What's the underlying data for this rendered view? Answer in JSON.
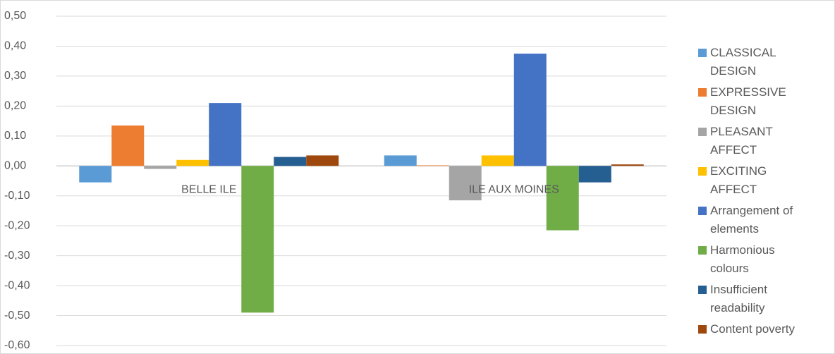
{
  "chart_data": {
    "type": "bar",
    "categories": [
      "BELLE ILE",
      "ILE AUX MOINES"
    ],
    "series": [
      {
        "name": "CLASSICAL DESIGN",
        "color": "#5b9bd5",
        "values": [
          -0.055,
          0.035
        ]
      },
      {
        "name": "EXPRESSIVE DESIGN",
        "color": "#ed7d31",
        "values": [
          0.135,
          0.002
        ]
      },
      {
        "name": "PLEASANT AFFECT",
        "color": "#a5a5a5",
        "values": [
          -0.01,
          -0.115
        ]
      },
      {
        "name": "EXCITING AFFECT",
        "color": "#ffc000",
        "values": [
          0.02,
          0.035
        ]
      },
      {
        "name": "Arrangement of elements",
        "color": "#4472c4",
        "values": [
          0.21,
          0.375
        ]
      },
      {
        "name": "Harmonious colours",
        "color": "#70ad47",
        "values": [
          -0.49,
          -0.215
        ]
      },
      {
        "name": "Insufficient readability",
        "color": "#255e91",
        "values": [
          0.03,
          -0.055
        ]
      },
      {
        "name": "Content poverty",
        "color": "#9e480e",
        "values": [
          0.035,
          0.005
        ]
      }
    ],
    "ylim": [
      -0.6,
      0.5
    ],
    "yticks": [
      {
        "value": 0.5,
        "label": "0,50"
      },
      {
        "value": 0.4,
        "label": "0,40"
      },
      {
        "value": 0.3,
        "label": "0,30"
      },
      {
        "value": 0.2,
        "label": "0,20"
      },
      {
        "value": 0.1,
        "label": "0,10"
      },
      {
        "value": 0,
        "label": "0,00"
      },
      {
        "value": -0.1,
        "label": "-0,10"
      },
      {
        "value": -0.2,
        "label": "-0,20"
      },
      {
        "value": -0.3,
        "label": "-0,30"
      },
      {
        "value": -0.4,
        "label": "-0,40"
      },
      {
        "value": -0.5,
        "label": "-0,50"
      },
      {
        "value": -0.6,
        "label": "-0,60"
      }
    ],
    "grid": true,
    "legend": "right"
  }
}
